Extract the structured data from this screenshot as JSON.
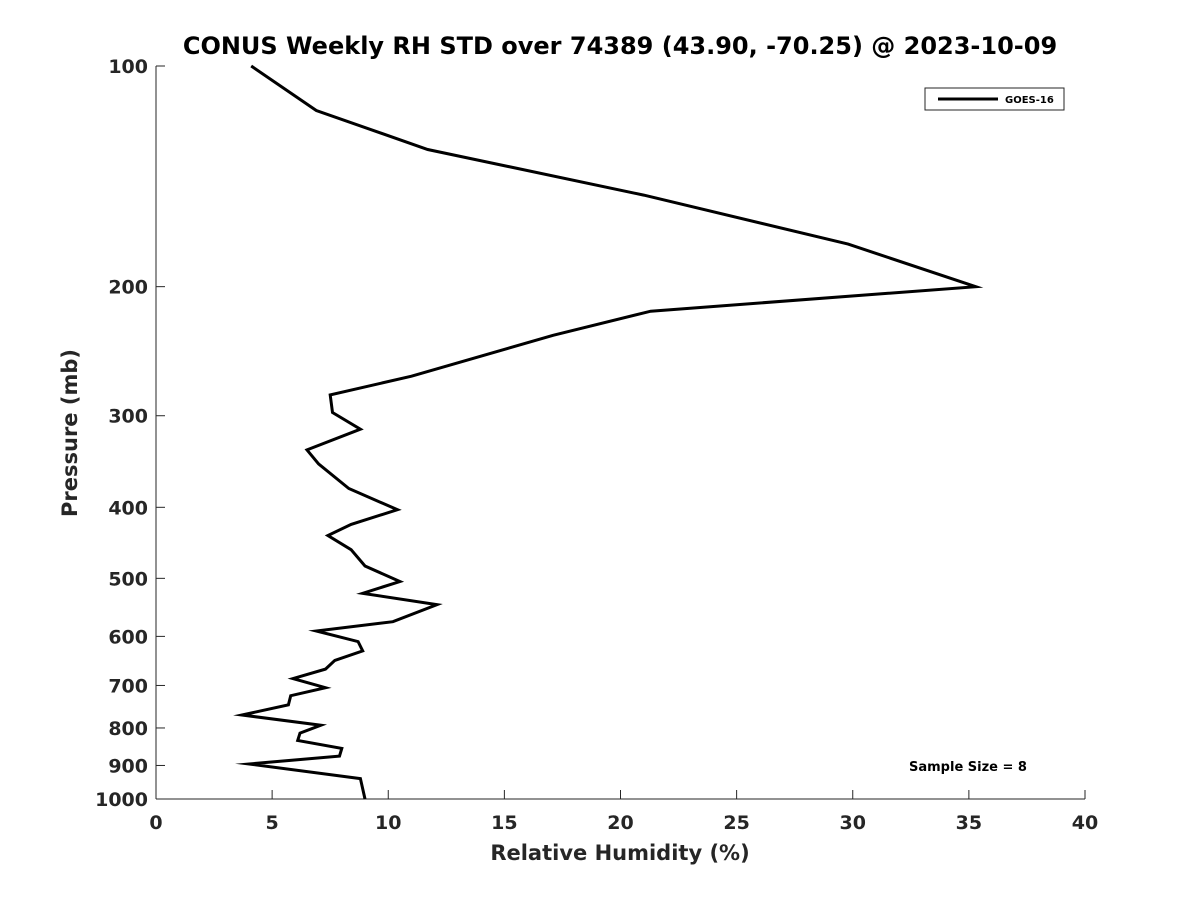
{
  "chart_data": {
    "type": "line",
    "title": "CONUS Weekly RH STD over 74389 (43.90, -70.25) @ 2023-10-09",
    "xlabel": "Relative Humidity (%)",
    "ylabel": "Pressure (mb)",
    "xlim": [
      0,
      40
    ],
    "ylim": [
      100,
      1000
    ],
    "y_scale": "log",
    "y_reversed": true,
    "grid": false,
    "legend_position": "top-right",
    "x_ticks": [
      0,
      5,
      10,
      15,
      20,
      25,
      30,
      35,
      40
    ],
    "y_ticks": [
      100,
      200,
      300,
      400,
      500,
      600,
      700,
      800,
      900,
      1000
    ],
    "series": [
      {
        "name": "GOES-16",
        "color": "#000000",
        "x": [
          4.1,
          6.9,
          11.7,
          21.0,
          29.8,
          35.3,
          21.3,
          17.1,
          11.0,
          7.5,
          7.6,
          8.8,
          6.5,
          7.0,
          8.3,
          10.4,
          8.4,
          7.4,
          8.4,
          9.0,
          10.5,
          8.9,
          12.1,
          10.2,
          6.9,
          8.7,
          8.9,
          7.7,
          7.3,
          5.9,
          7.3,
          5.8,
          5.7,
          3.7,
          7.1,
          6.2,
          6.1,
          8.0,
          7.9,
          4.0,
          8.8,
          9.0
        ],
        "y": [
          100,
          115,
          130,
          150,
          175,
          200,
          216,
          233,
          265,
          281,
          297,
          313,
          334,
          349,
          377,
          403,
          422,
          437,
          457,
          481,
          505,
          524,
          543,
          573,
          590,
          610,
          628,
          647,
          665,
          685,
          705,
          723,
          744,
          768,
          793,
          813,
          832,
          853,
          874,
          896,
          938,
          1000
        ]
      }
    ],
    "annotations": [
      "Sample Size = 8"
    ]
  }
}
